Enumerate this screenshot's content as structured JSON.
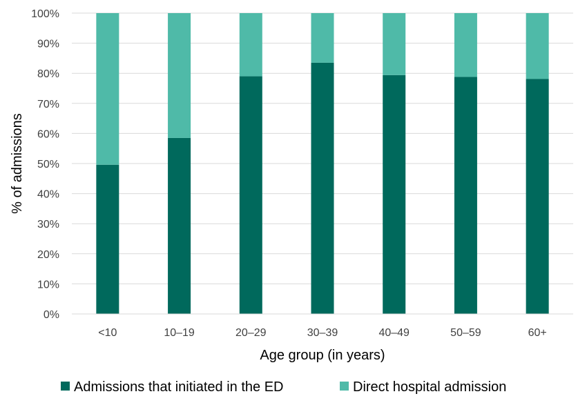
{
  "chart_data": {
    "type": "bar",
    "stacked": true,
    "categories": [
      "<10",
      "10–19",
      "20–29",
      "30–39",
      "40–49",
      "50–59",
      "60+"
    ],
    "series": [
      {
        "name": "Admissions that initiated in the ED",
        "color": "#00695c",
        "values": [
          49.6,
          58.5,
          79.0,
          83.5,
          79.4,
          78.8,
          78.1
        ]
      },
      {
        "name": "Direct hospital admission",
        "color": "#4fbaa8",
        "values": [
          50.4,
          41.5,
          21.0,
          16.5,
          20.6,
          21.2,
          21.9
        ]
      }
    ],
    "title": "",
    "xlabel": "Age group (in years)",
    "ylabel": "% of admissions",
    "ylim": [
      0,
      100
    ],
    "yticks": [
      "0%",
      "10%",
      "20%",
      "30%",
      "40%",
      "50%",
      "60%",
      "70%",
      "80%",
      "90%",
      "100%"
    ],
    "grid": true,
    "legend_position": "bottom"
  }
}
